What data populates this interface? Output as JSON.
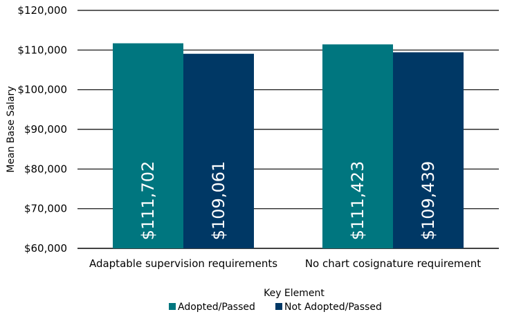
{
  "chart_data": {
    "type": "bar",
    "title": "",
    "xlabel": "Key Element",
    "ylabel": "Mean Base Salary",
    "ylim": [
      60000,
      120000
    ],
    "yticks": [
      60000,
      70000,
      80000,
      90000,
      100000,
      110000,
      120000
    ],
    "ytick_labels": [
      "$60,000",
      "$70,000",
      "$80,000",
      "$90,000",
      "$100,000",
      "$110,000",
      "$120,000"
    ],
    "categories": [
      "Adaptable supervision requirements",
      "No chart cosignature requirement"
    ],
    "series": [
      {
        "name": "Adopted/Passed",
        "color": "#00767f",
        "values": [
          111702,
          111423
        ],
        "labels": [
          "$111,702",
          "$111,423"
        ]
      },
      {
        "name": "Not Adopted/Passed",
        "color": "#003865",
        "values": [
          109061,
          109439
        ],
        "labels": [
          "$109,061",
          "$109,439"
        ]
      }
    ],
    "grid": true,
    "legend_position": "bottom"
  }
}
